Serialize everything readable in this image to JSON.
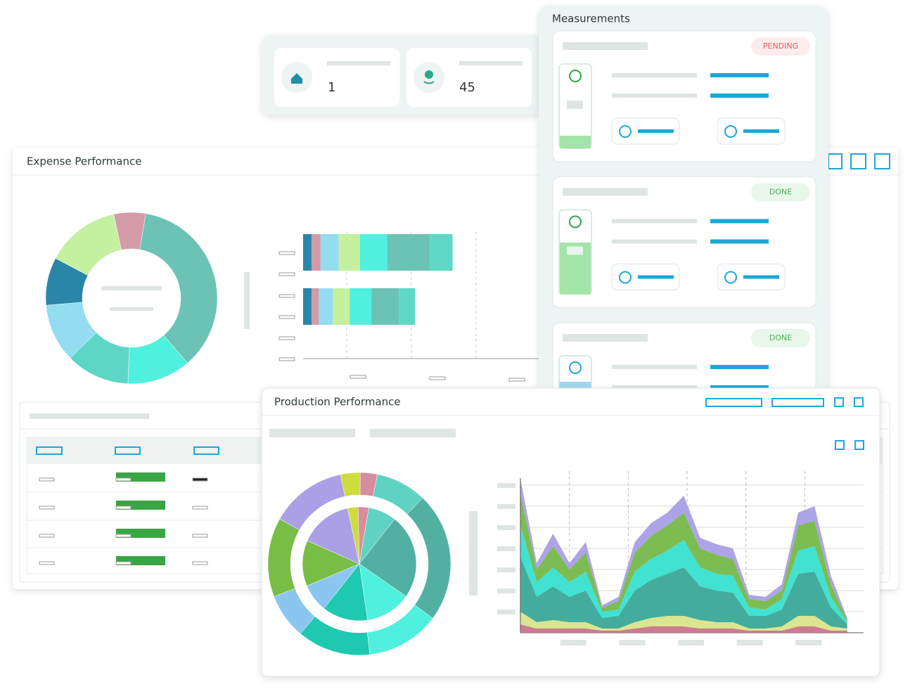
{
  "stats": [
    {
      "value": 1
    },
    {
      "value": 45
    }
  ],
  "measurements": {
    "title": "Measurements",
    "cards": [
      {
        "status": "PENDING"
      },
      {
        "status": "DONE"
      },
      {
        "status": "DONE"
      }
    ]
  },
  "expense": {
    "title": "Expense Performance"
  },
  "production": {
    "title": "Production Performance"
  },
  "chart_data": [
    {
      "type": "donut",
      "values": [
        6,
        36,
        12,
        12,
        11,
        9,
        14
      ],
      "colors": [
        "#d49aa8",
        "#6cc3b5",
        "#4ff0dd",
        "#5dd6c8",
        "#94dcf0",
        "#2a86a8",
        "#c4f0a0"
      ]
    },
    {
      "type": "bar",
      "horizontal": true,
      "stacked": true,
      "categories": [
        null,
        null
      ],
      "xlim": [
        0,
        36
      ],
      "series": [
        {
          "color": "#2a86a8",
          "values": [
            1.3,
            1.3
          ]
        },
        {
          "color": "#d49aa8",
          "values": [
            1.4,
            1.1
          ]
        },
        {
          "color": "#94dcf0",
          "values": [
            2.8,
            2.2
          ]
        },
        {
          "color": "#c4f0a0",
          "values": [
            3.3,
            2.6
          ]
        },
        {
          "color": "#4ff0dd",
          "values": [
            4.2,
            3.4
          ]
        },
        {
          "color": "#6cc3b5",
          "values": [
            6.6,
            4.2
          ]
        },
        {
          "color": "#5fd8c8",
          "values": [
            3.5,
            2.5
          ]
        }
      ]
    },
    {
      "type": "donut",
      "values": [
        3.5,
        3,
        9,
        23,
        13,
        13,
        8,
        14,
        13.5
      ],
      "colors": [
        "#cddc3e",
        "#d98c9d",
        "#5fd2c3",
        "#52b0a2",
        "#4ff0dd",
        "#1ec9b0",
        "#8ac6ef",
        "#78bd45",
        "#aba0e6"
      ]
    },
    {
      "type": "pie",
      "values": [
        3,
        3,
        8,
        24,
        13,
        13,
        8,
        13,
        15
      ],
      "colors": [
        "#cddc3e",
        "#d98c9d",
        "#5fd2c3",
        "#52b0a2",
        "#4ff0dd",
        "#1ec9b0",
        "#8ac6ef",
        "#78bd45",
        "#aba0e6"
      ]
    },
    {
      "type": "area",
      "stacked": true,
      "x": [
        0,
        1,
        2,
        3,
        4,
        5,
        6,
        7,
        8,
        9,
        10,
        11,
        12,
        13,
        14,
        15,
        16,
        17,
        18,
        19,
        20
      ],
      "xlim": [
        0,
        21
      ],
      "ylim": [
        0,
        7
      ],
      "yticks": [
        0,
        1,
        2,
        3,
        4,
        5,
        6,
        7
      ],
      "xticks": [
        3,
        6.6,
        10.2,
        13.8,
        17.4
      ],
      "grid": true,
      "series": [
        {
          "color": "#c9748a",
          "values": [
            0.4,
            0.2,
            0.2,
            0.2,
            0.2,
            0.1,
            0.1,
            0.2,
            0.3,
            0.3,
            0.3,
            0.2,
            0.2,
            0.2,
            0.1,
            0.1,
            0.1,
            0.3,
            0.3,
            0.1,
            0.1
          ]
        },
        {
          "color": "#d9e58a",
          "values": [
            0.6,
            0.3,
            0.4,
            0.3,
            0.3,
            0.1,
            0.1,
            0.3,
            0.4,
            0.5,
            0.5,
            0.4,
            0.3,
            0.3,
            0.1,
            0.1,
            0.2,
            0.5,
            0.5,
            0.2,
            0.1
          ]
        },
        {
          "color": "#3aa898",
          "values": [
            2.6,
            1.2,
            1.6,
            1.2,
            1.5,
            0.5,
            0.6,
            1.5,
            1.8,
            2.0,
            2.3,
            1.6,
            1.5,
            1.4,
            0.6,
            0.6,
            0.8,
            2.0,
            2.1,
            0.9,
            0.2
          ]
        },
        {
          "color": "#37e0cf",
          "values": [
            1.5,
            0.7,
            0.9,
            0.7,
            0.9,
            0.3,
            0.3,
            0.9,
            1.0,
            1.1,
            1.3,
            0.9,
            0.8,
            0.8,
            0.4,
            0.3,
            0.5,
            1.1,
            1.2,
            0.5,
            0.1
          ]
        },
        {
          "color": "#76b84a",
          "values": [
            1.5,
            0.6,
            1.0,
            0.6,
            0.9,
            0.2,
            0.4,
            0.9,
            1.1,
            1.2,
            1.3,
            0.9,
            0.9,
            0.8,
            0.4,
            0.4,
            0.4,
            1.2,
            1.2,
            0.6,
            0.1
          ]
        },
        {
          "color": "#a99ee6",
          "values": [
            0.7,
            0.3,
            0.6,
            0.3,
            0.5,
            0.1,
            0.2,
            0.5,
            0.6,
            0.6,
            0.8,
            0.5,
            0.5,
            0.5,
            0.2,
            0.2,
            0.3,
            0.6,
            0.7,
            0.4,
            0.1
          ]
        }
      ]
    }
  ]
}
